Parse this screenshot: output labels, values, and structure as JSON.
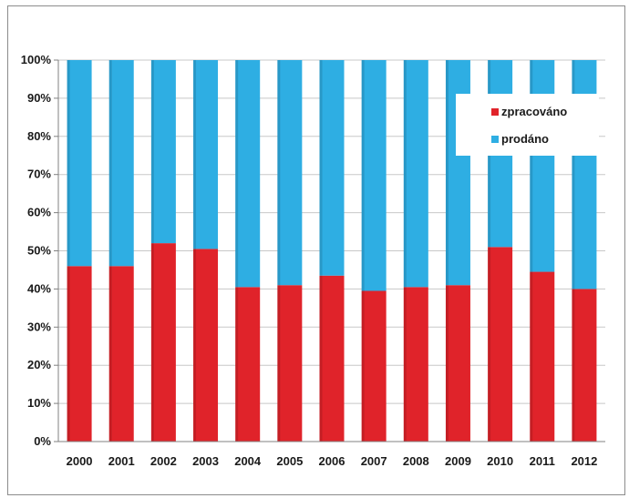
{
  "chart_data": {
    "type": "bar",
    "stacked": true,
    "normalized": true,
    "categories": [
      "2000",
      "2001",
      "2002",
      "2003",
      "2004",
      "2005",
      "2006",
      "2007",
      "2008",
      "2009",
      "2010",
      "2011",
      "2012"
    ],
    "series": [
      {
        "name": "zpracováno",
        "color": "#e0232a",
        "values": [
          46,
          46,
          52,
          50.5,
          40.5,
          41,
          43.5,
          39.5,
          40.5,
          41,
          51,
          44.5,
          40
        ]
      },
      {
        "name": "prodáno",
        "color": "#2eaee3",
        "values": [
          54,
          54,
          48,
          49.5,
          59.5,
          59,
          56.5,
          60.5,
          59.5,
          59,
          49,
          55.5,
          60
        ]
      }
    ],
    "yticks": [
      "0%",
      "10%",
      "20%",
      "30%",
      "40%",
      "50%",
      "60%",
      "70%",
      "80%",
      "90%",
      "100%"
    ],
    "ylim": [
      0,
      100
    ],
    "grid": true,
    "legend_position": "top-right"
  }
}
